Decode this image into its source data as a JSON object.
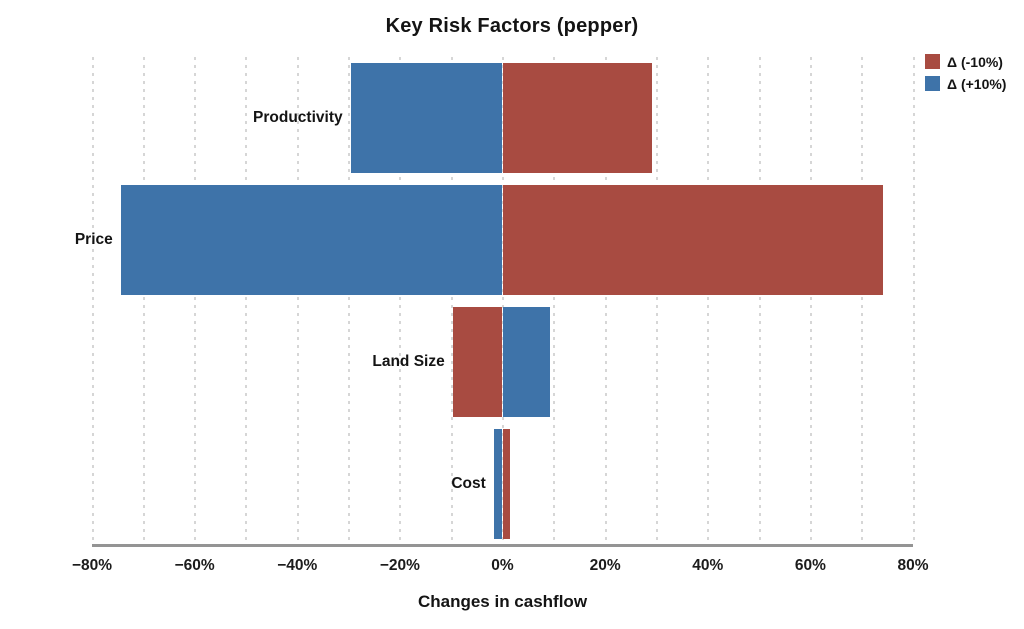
{
  "chart_data": {
    "type": "bar",
    "variant": "tornado-diverging-horizontal",
    "title": "Key Risk Factors (pepper)",
    "xlabel": "Changes in cashflow",
    "ylabel": "",
    "categories": [
      "Productivity",
      "Price",
      "Land Size",
      "Cost"
    ],
    "series": [
      {
        "name": "Δ (-10%)",
        "color": "#a84b41",
        "values": [
          29.2,
          74.1,
          -9.7,
          1.4
        ]
      },
      {
        "name": "Δ (+10%)",
        "color": "#3e73a9",
        "values": [
          -29.6,
          -74.4,
          9.2,
          -1.7
        ]
      }
    ],
    "value_unit": "%",
    "xlim": [
      -80,
      80
    ],
    "x_ticks": [
      {
        "value": -80,
        "label": "−80%"
      },
      {
        "value": -60,
        "label": "−60%"
      },
      {
        "value": -40,
        "label": "−40%"
      },
      {
        "value": -20,
        "label": "−20%"
      },
      {
        "value": 0,
        "label": "0%"
      },
      {
        "value": 20,
        "label": "20%"
      },
      {
        "value": 40,
        "label": "40%"
      },
      {
        "value": 60,
        "label": "60%"
      },
      {
        "value": 80,
        "label": "80%"
      }
    ],
    "grid": {
      "vertical": true,
      "step": 10,
      "style": "dotted"
    },
    "legend_position": "top-right-outside"
  },
  "colors": {
    "bar_negative_delta": "#a84b41",
    "bar_positive_delta": "#3e73a9",
    "gridline": "#d6d6d6",
    "axis_line": "#949494",
    "text": "#141414"
  }
}
